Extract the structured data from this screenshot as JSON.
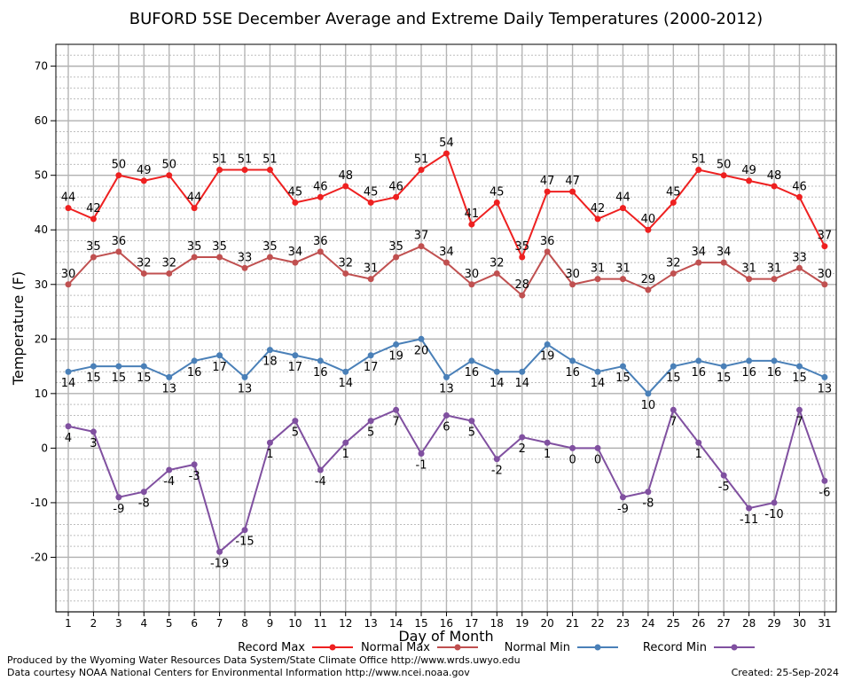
{
  "chart_data": {
    "type": "line",
    "title": "BUFORD 5SE December Average and Extreme Daily Temperatures (2000-2012)",
    "xlabel": "Day of Month",
    "ylabel": "Temperature (F)",
    "ylim": [
      -30,
      74
    ],
    "yticks": [
      70,
      60,
      50,
      40,
      30,
      20,
      10,
      0,
      -10,
      -20
    ],
    "x": [
      1,
      2,
      3,
      4,
      5,
      6,
      7,
      8,
      9,
      10,
      11,
      12,
      13,
      14,
      15,
      16,
      17,
      18,
      19,
      20,
      21,
      22,
      23,
      24,
      25,
      26,
      27,
      28,
      29,
      30,
      31
    ],
    "grid": true,
    "legend_position": "bottom",
    "series": [
      {
        "name": "Record Max",
        "color": "#ee2020",
        "label_pos": "above",
        "values": [
          44,
          42,
          50,
          49,
          50,
          44,
          51,
          51,
          51,
          45,
          46,
          48,
          45,
          46,
          51,
          54,
          41,
          45,
          35,
          47,
          47,
          42,
          44,
          40,
          45,
          51,
          50,
          49,
          48,
          46,
          37
        ]
      },
      {
        "name": "Normal Max",
        "color": "#c05050",
        "label_pos": "above",
        "values": [
          30,
          35,
          36,
          32,
          32,
          35,
          35,
          33,
          35,
          34,
          36,
          32,
          31,
          35,
          37,
          34,
          30,
          32,
          28,
          36,
          30,
          31,
          31,
          29,
          32,
          34,
          34,
          31,
          31,
          33,
          30
        ]
      },
      {
        "name": "Normal Min",
        "color": "#4a80b8",
        "label_pos": "below",
        "values": [
          14,
          15,
          15,
          15,
          13,
          16,
          17,
          13,
          18,
          17,
          16,
          14,
          17,
          19,
          20,
          13,
          16,
          14,
          14,
          19,
          16,
          14,
          15,
          10,
          15,
          16,
          15,
          16,
          16,
          15,
          13
        ]
      },
      {
        "name": "Record Min",
        "color": "#8050a0",
        "label_pos": "below",
        "values": [
          4,
          3,
          -9,
          -8,
          -4,
          -3,
          -19,
          -15,
          1,
          5,
          -4,
          1,
          5,
          7,
          -1,
          6,
          5,
          -2,
          2,
          1,
          0,
          0,
          -9,
          -8,
          7,
          1,
          -5,
          -11,
          -10,
          7,
          -6
        ]
      }
    ]
  },
  "footer": {
    "line1": "Produced by the Wyoming Water Resources Data System/State Climate Office http://www.wrds.uwyo.edu",
    "line2": "Data courtesy NOAA National Centers for Environmental Information http://www.ncei.noaa.gov",
    "created": "Created:  25-Sep-2024"
  }
}
